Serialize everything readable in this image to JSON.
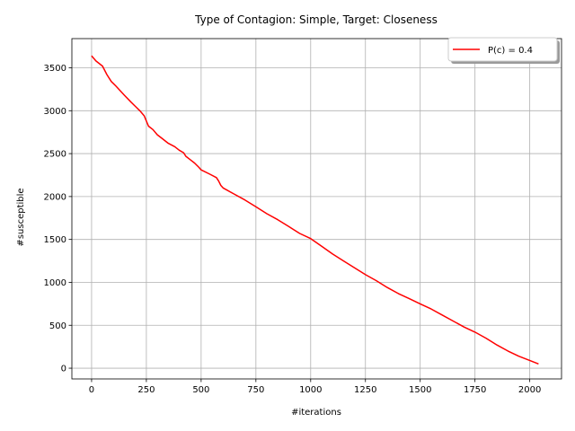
{
  "chart_data": {
    "type": "line",
    "title": "Type of Contagion: Simple, Target: Closeness",
    "xlabel": "#iterations",
    "ylabel": "#susceptible",
    "xlim": [
      -90,
      2145
    ],
    "ylim": [
      -125,
      3840
    ],
    "xticks": [
      0,
      250,
      500,
      750,
      1000,
      1250,
      1500,
      1750,
      2000
    ],
    "yticks": [
      0,
      500,
      1000,
      1500,
      2000,
      2500,
      3000,
      3500
    ],
    "grid": true,
    "legend_position": "top-right",
    "series": [
      {
        "name": "P(c) = 0.4",
        "color": "#ff0000",
        "x": [
          0,
          20,
          50,
          70,
          90,
          110,
          150,
          180,
          200,
          220,
          240,
          250,
          260,
          280,
          300,
          320,
          350,
          380,
          400,
          420,
          430,
          450,
          470,
          490,
          500,
          540,
          570,
          580,
          590,
          600,
          650,
          700,
          750,
          800,
          850,
          900,
          950,
          1000,
          1050,
          1100,
          1150,
          1200,
          1250,
          1300,
          1350,
          1400,
          1450,
          1500,
          1550,
          1600,
          1650,
          1700,
          1750,
          1800,
          1850,
          1900,
          1950,
          2000,
          2040
        ],
        "y": [
          3640,
          3580,
          3520,
          3420,
          3340,
          3290,
          3180,
          3100,
          3050,
          3000,
          2940,
          2880,
          2820,
          2780,
          2720,
          2680,
          2620,
          2580,
          2540,
          2510,
          2470,
          2430,
          2390,
          2340,
          2310,
          2260,
          2220,
          2180,
          2130,
          2100,
          2030,
          1960,
          1880,
          1800,
          1730,
          1650,
          1570,
          1510,
          1420,
          1330,
          1250,
          1170,
          1090,
          1020,
          940,
          870,
          810,
          750,
          690,
          620,
          550,
          480,
          420,
          350,
          270,
          200,
          140,
          90,
          50
        ]
      }
    ]
  }
}
